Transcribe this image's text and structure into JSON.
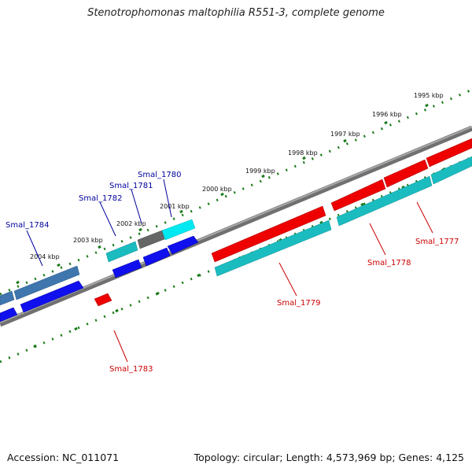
{
  "title": "Stenotrophomonas maltophilia R551-3, complete genome",
  "footer": {
    "accession": "Accession: NC_011071",
    "summary": "Topology: circular; Length: 4,573,969 bp; Genes: 4,125"
  },
  "colors": {
    "backbone": "#808080",
    "ruler": "#1a7a1a",
    "forward_label": "#00009c",
    "reverse_label": "#cc0000",
    "red": "#ee0000",
    "blue": "#1010ee",
    "cyan_dark": "#1bbcc0",
    "cyan_light": "#00e8f0",
    "steel": "#3f76ae",
    "grey": "#666666"
  },
  "ruler_labels": [
    "1995 kbp",
    "1996 kbp",
    "1997 kbp",
    "1998 kbp",
    "1999 kbp",
    "2000 kbp",
    "2001 kbp",
    "2002 kbp",
    "2003 kbp",
    "2004 kbp"
  ],
  "gene_labels": {
    "forward": [
      "Smal_1780",
      "Smal_1781",
      "Smal_1782",
      "Smal_1784"
    ],
    "reverse": [
      "Smal_1777",
      "Smal_1778",
      "Smal_1779",
      "Smal_1783"
    ]
  }
}
